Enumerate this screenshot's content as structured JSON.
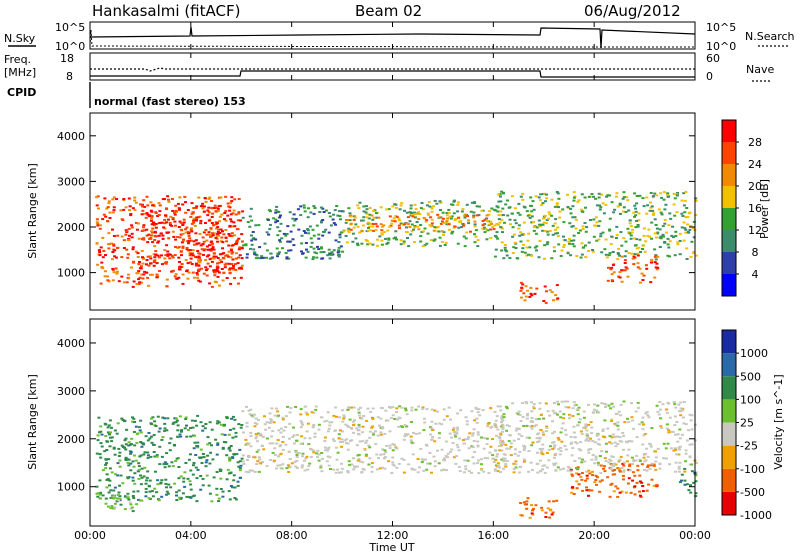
{
  "header": {
    "station": "Hankasalmi (fitACF)",
    "beam": "Beam 02",
    "date": "06/Aug/2012"
  },
  "top_panels": {
    "nsky_label": "N.Sky",
    "nsky_ticks": [
      "10^5",
      "10^0"
    ],
    "nsearch_label": "N.Search",
    "nsearch_ticks": [
      "10^5",
      "10^0"
    ],
    "freq_label": "Freq.",
    "freq_unit": "[MHz]",
    "freq_ticks": [
      "18",
      "8"
    ],
    "nave_label": "Nave",
    "nave_ticks": [
      "60",
      "0"
    ],
    "cpid_label": "CPID",
    "cpid_value": "normal (fast stereo) 153"
  },
  "colors": {
    "power": [
      "#0000ff",
      "#2f3fa8",
      "#3a8c6a",
      "#33a033",
      "#f3c000",
      "#f08a00",
      "#ff4400",
      "#ff0000"
    ],
    "velocity": [
      "#e80000",
      "#f06000",
      "#f0a000",
      "#c8c8c0",
      "#6cc030",
      "#2f8a4a",
      "#2a6aa8",
      "#1a2aa0"
    ]
  },
  "chart_data": [
    {
      "type": "heatmap",
      "panel": "power",
      "ylabel": "Slant Range [km]",
      "xlabel": "",
      "xlim": [
        "00:00",
        "24:00"
      ],
      "ylim": [
        180,
        4500
      ],
      "yticks": [
        "1000",
        "2000",
        "3000",
        "4000"
      ],
      "colorbar": {
        "label": "Power [dB]",
        "ticks": [
          "4",
          "8",
          "12",
          "16",
          "20",
          "24",
          "28"
        ],
        "range": [
          0,
          32
        ]
      },
      "echo_regions": [
        {
          "t_start": 0.2,
          "t_end": 6.0,
          "r_min": 700,
          "r_max": 2700,
          "level_db": 24
        },
        {
          "t_start": 2.0,
          "t_end": 6.0,
          "r_min": 1000,
          "r_max": 2500,
          "level_db": 28
        },
        {
          "t_start": 6.0,
          "t_end": 10.0,
          "r_min": 1300,
          "r_max": 2500,
          "level_db": 10
        },
        {
          "t_start": 10.0,
          "t_end": 16.0,
          "r_min": 1600,
          "r_max": 2600,
          "level_db": 12
        },
        {
          "t_start": 10.0,
          "t_end": 16.0,
          "r_min": 1900,
          "r_max": 2300,
          "level_db": 22
        },
        {
          "t_start": 16.0,
          "t_end": 24.0,
          "r_min": 1300,
          "r_max": 2800,
          "level_db": 12
        },
        {
          "t_start": 17.0,
          "t_end": 18.5,
          "r_min": 350,
          "r_max": 800,
          "level_db": 24
        },
        {
          "t_start": 20.5,
          "t_end": 22.5,
          "r_min": 800,
          "r_max": 1400,
          "level_db": 26
        }
      ]
    },
    {
      "type": "heatmap",
      "panel": "velocity",
      "ylabel": "Slant Range [km]",
      "xlabel": "Time UT",
      "xlim": [
        "00:00",
        "24:00"
      ],
      "xticks": [
        "00:00",
        "04:00",
        "08:00",
        "12:00",
        "16:00",
        "20:00",
        "00:00"
      ],
      "ylim": [
        180,
        4500
      ],
      "yticks": [
        "1000",
        "2000",
        "3000",
        "4000"
      ],
      "colorbar": {
        "label": "Velocity [m s^-1]",
        "ticks": [
          "1000",
          "500",
          "100",
          "25",
          "-25",
          "-100",
          "-500",
          "-1000"
        ]
      },
      "echo_regions": [
        {
          "t_start": 0.2,
          "t_end": 6.0,
          "r_min": 700,
          "r_max": 2500,
          "velocity": 500
        },
        {
          "t_start": 0.2,
          "t_end": 2.0,
          "r_min": 500,
          "r_max": 900,
          "velocity": 100
        },
        {
          "t_start": 6.0,
          "t_end": 16.5,
          "r_min": 1300,
          "r_max": 2700,
          "velocity": 0
        },
        {
          "t_start": 17.0,
          "t_end": 18.5,
          "r_min": 350,
          "r_max": 800,
          "velocity": -300
        },
        {
          "t_start": 19.0,
          "t_end": 22.5,
          "r_min": 800,
          "r_max": 1500,
          "velocity": -300
        },
        {
          "t_start": 16.0,
          "t_end": 24.0,
          "r_min": 1300,
          "r_max": 2800,
          "velocity": 0
        },
        {
          "t_start": 23.3,
          "t_end": 24.0,
          "r_min": 800,
          "r_max": 1400,
          "velocity": 500
        }
      ]
    }
  ]
}
